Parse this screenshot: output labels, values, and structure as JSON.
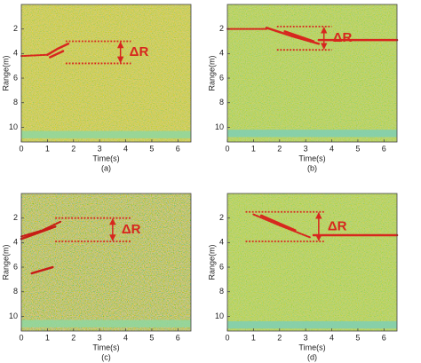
{
  "chart_data": [
    {
      "type": "heatmap",
      "label": "(a)",
      "xlabel": "Time(s)",
      "ylabel": "Range(m)",
      "xlim": [
        0,
        6.5
      ],
      "ylim": [
        0,
        11.2
      ],
      "y_inverted": true,
      "xticks": [
        0,
        1,
        2,
        3,
        4,
        5,
        6
      ],
      "yticks": [
        2,
        4,
        6,
        8,
        10
      ],
      "background": "#e2d94a",
      "noise": 0.35,
      "band": [
        10.3,
        10.9
      ],
      "band_color": "#8fd7a0",
      "trace_color": "#d7261e",
      "traces": [
        {
          "x": [
            0,
            1.0
          ],
          "y": [
            4.2,
            4.1
          ]
        },
        {
          "x": [
            1.0,
            1.4,
            1.8
          ],
          "y": [
            4.1,
            3.6,
            3.2
          ]
        },
        {
          "x": [
            1.1,
            1.6
          ],
          "y": [
            4.3,
            3.8
          ]
        }
      ],
      "annotation": {
        "text": "ΔR",
        "x0": 1.7,
        "x1": 4.2,
        "y_top": 3.0,
        "y_bottom": 4.8,
        "arrow_x": 3.8
      }
    },
    {
      "type": "heatmap",
      "label": "(b)",
      "xlabel": "Time(s)",
      "ylabel": "Range(m)",
      "xlim": [
        0,
        6.5
      ],
      "ylim": [
        0,
        11.2
      ],
      "y_inverted": true,
      "xticks": [
        0,
        1,
        2,
        3,
        4,
        5,
        6
      ],
      "yticks": [
        2,
        4,
        6,
        8,
        10
      ],
      "background": "#c3de5a",
      "noise": 0.3,
      "band": [
        10.2,
        10.8
      ],
      "band_color": "#7fcfb4",
      "trace_color": "#d7261e",
      "traces": [
        {
          "x": [
            0,
            1.5
          ],
          "y": [
            2.0,
            2.0
          ]
        },
        {
          "x": [
            1.5,
            2.5,
            3.5
          ],
          "y": [
            1.9,
            2.6,
            3.2
          ]
        },
        {
          "x": [
            3.5,
            6.5
          ],
          "y": [
            2.9,
            2.9
          ]
        },
        {
          "x": [
            2.2,
            3.3
          ],
          "y": [
            2.2,
            3.0
          ]
        }
      ],
      "annotation": {
        "text": "ΔR",
        "x0": 1.9,
        "x1": 4.0,
        "y_top": 1.8,
        "y_bottom": 3.7,
        "arrow_x": 3.7
      }
    },
    {
      "type": "heatmap",
      "label": "(c)",
      "xlabel": "Time(s)",
      "ylabel": "Range(m)",
      "xlim": [
        0,
        6.5
      ],
      "ylim": [
        0,
        11.2
      ],
      "y_inverted": true,
      "xticks": [
        0,
        1,
        2,
        3,
        4,
        5,
        6
      ],
      "yticks": [
        2,
        4,
        6,
        8,
        10
      ],
      "background": "#e4d64a",
      "noise": 0.6,
      "band": [
        10.3,
        10.9
      ],
      "band_color": "#8fd7a0",
      "trace_color": "#c81c16",
      "traces": [
        {
          "x": [
            0,
            0.8,
            1.5
          ],
          "y": [
            3.5,
            3.0,
            2.3
          ]
        },
        {
          "x": [
            0,
            1.3
          ],
          "y": [
            3.7,
            2.7
          ]
        },
        {
          "x": [
            0.4,
            1.2
          ],
          "y": [
            6.5,
            6.0
          ]
        }
      ],
      "annotation": {
        "text": "ΔR",
        "x0": 1.3,
        "x1": 4.2,
        "y_top": 2.0,
        "y_bottom": 3.9,
        "arrow_x": 3.5
      }
    },
    {
      "type": "heatmap",
      "label": "(d)",
      "xlabel": "Time(s)",
      "ylabel": "Range(m)",
      "xlim": [
        0,
        6.5
      ],
      "ylim": [
        0,
        11.2
      ],
      "y_inverted": true,
      "xticks": [
        0,
        1,
        2,
        3,
        4,
        5,
        6
      ],
      "yticks": [
        2,
        4,
        6,
        8,
        10
      ],
      "background": "#c3de5a",
      "noise": 0.3,
      "band": [
        10.4,
        11.0
      ],
      "band_color": "#7fcfb4",
      "trace_color": "#d7261e",
      "traces": [
        {
          "x": [
            1.0,
            2.0,
            3.2
          ],
          "y": [
            1.7,
            2.6,
            3.6
          ]
        },
        {
          "x": [
            3.3,
            6.5
          ],
          "y": [
            3.4,
            3.4
          ]
        },
        {
          "x": [
            1.3,
            2.6
          ],
          "y": [
            1.8,
            3.0
          ]
        }
      ],
      "annotation": {
        "text": "ΔR",
        "x0": 0.7,
        "x1": 3.7,
        "y_top": 1.5,
        "y_bottom": 3.9,
        "arrow_x": 3.5
      }
    }
  ]
}
